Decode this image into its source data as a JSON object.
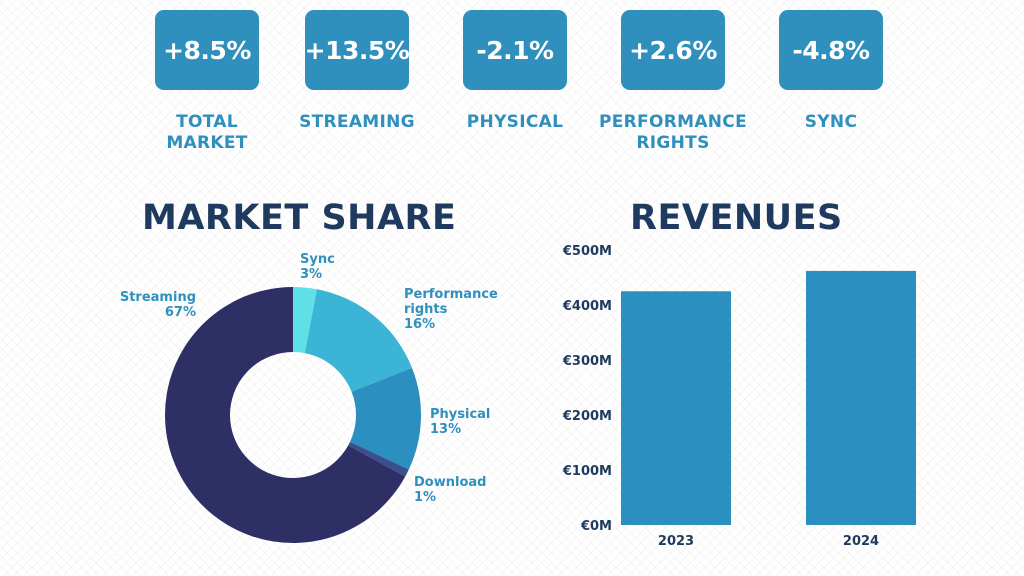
{
  "kpis": [
    {
      "value": "+8.5%",
      "label": "TOTAL\nMARKET"
    },
    {
      "value": "+13.5%",
      "label": "STREAMING"
    },
    {
      "value": "-2.1%",
      "label": "PHYSICAL"
    },
    {
      "value": "+2.6%",
      "label": "PERFORMANCE\nRIGHTS"
    },
    {
      "value": "-4.8%",
      "label": "SYNC"
    }
  ],
  "market_share_title": "MARKET SHARE",
  "revenues_title": "REVENUES",
  "colors": {
    "accent": "#2f8fbd",
    "title": "#1e3a5f",
    "streaming": "#2e2f64",
    "sync": "#5ee0e6",
    "performance_rights": "#3cb4d6",
    "physical": "#2b8fbf",
    "download": "#3a4f8c"
  },
  "chart_data": [
    {
      "type": "pie",
      "variant": "donut",
      "title": "MARKET SHARE",
      "slices": [
        {
          "name": "Sync",
          "value": 3,
          "label": "3%"
        },
        {
          "name": "Performance\nrights",
          "value": 16,
          "label": "16%"
        },
        {
          "name": "Physical",
          "value": 13,
          "label": "13%"
        },
        {
          "name": "Download",
          "value": 1,
          "label": "1%"
        },
        {
          "name": "Streaming",
          "value": 67,
          "label": "67%"
        }
      ]
    },
    {
      "type": "bar",
      "title": "REVENUES",
      "categories": [
        "2023",
        "2024"
      ],
      "values": [
        425,
        462
      ],
      "ylim": [
        0,
        500
      ],
      "yticks": [
        "€0M",
        "€100M",
        "€200M",
        "€300M",
        "€400M",
        "€500M"
      ],
      "ytick_values": [
        0,
        100,
        200,
        300,
        400,
        500
      ],
      "grid": false
    }
  ]
}
